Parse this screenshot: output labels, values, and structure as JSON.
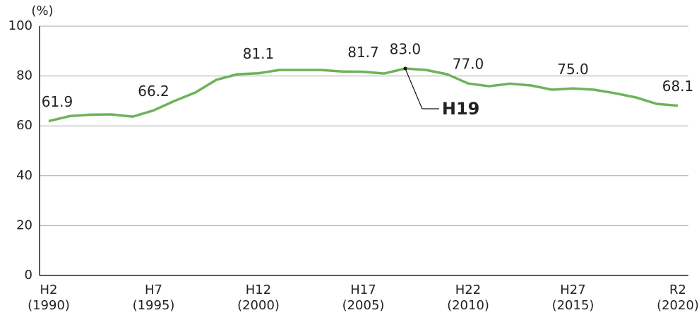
{
  "chart_data": {
    "type": "line",
    "y_unit": "(%)",
    "categories": [
      "H2\n(1990)",
      null,
      null,
      null,
      null,
      "H7\n(1995)",
      null,
      null,
      null,
      null,
      "H12\n(2000)",
      null,
      null,
      null,
      null,
      "H17\n(2005)",
      null,
      null,
      null,
      null,
      "H22\n(2010)",
      null,
      null,
      null,
      null,
      "H27\n(2015)",
      null,
      null,
      null,
      null,
      "R2\n(2020)"
    ],
    "series": [
      {
        "name": null,
        "color": "#6db35a",
        "values": [
          61.9,
          63.9,
          64.5,
          64.6,
          63.7,
          66.2,
          70.0,
          73.4,
          78.5,
          80.7,
          81.1,
          82.4,
          82.4,
          82.4,
          81.8,
          81.7,
          81.0,
          83.0,
          82.4,
          80.7,
          77.0,
          75.9,
          76.9,
          76.2,
          74.5,
          75.0,
          74.5,
          73.1,
          71.4,
          68.8,
          68.1
        ],
        "value_labels": [
          "61.9",
          null,
          null,
          null,
          null,
          "66.2",
          null,
          null,
          null,
          null,
          "81.1",
          null,
          null,
          null,
          null,
          "81.7",
          null,
          "83.0",
          null,
          null,
          "77.0",
          null,
          null,
          null,
          null,
          "75.0",
          null,
          null,
          null,
          null,
          "68.1"
        ]
      }
    ],
    "annotations": [
      {
        "text": "H19",
        "index": 17
      }
    ],
    "ylim": [
      0,
      100
    ],
    "yticks": [
      0,
      20,
      40,
      60,
      80,
      100
    ],
    "grid": true
  }
}
